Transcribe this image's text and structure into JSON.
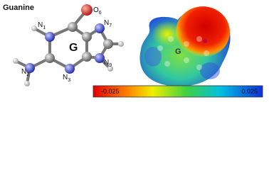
{
  "title": "Guanine",
  "molecule": {
    "center_label": "G",
    "atoms": [
      {
        "element": "O",
        "subscript": "6"
      },
      {
        "element": "N",
        "subscript": "1"
      },
      {
        "element": "N",
        "subscript": "7"
      },
      {
        "element": "N",
        "subscript": "2"
      },
      {
        "element": "N",
        "subscript": "3"
      },
      {
        "element": "N",
        "subscript": "9"
      }
    ]
  },
  "esp_map": {
    "center_label": "G"
  },
  "colorbar": {
    "min": -0.025,
    "max": 0.025
  }
}
